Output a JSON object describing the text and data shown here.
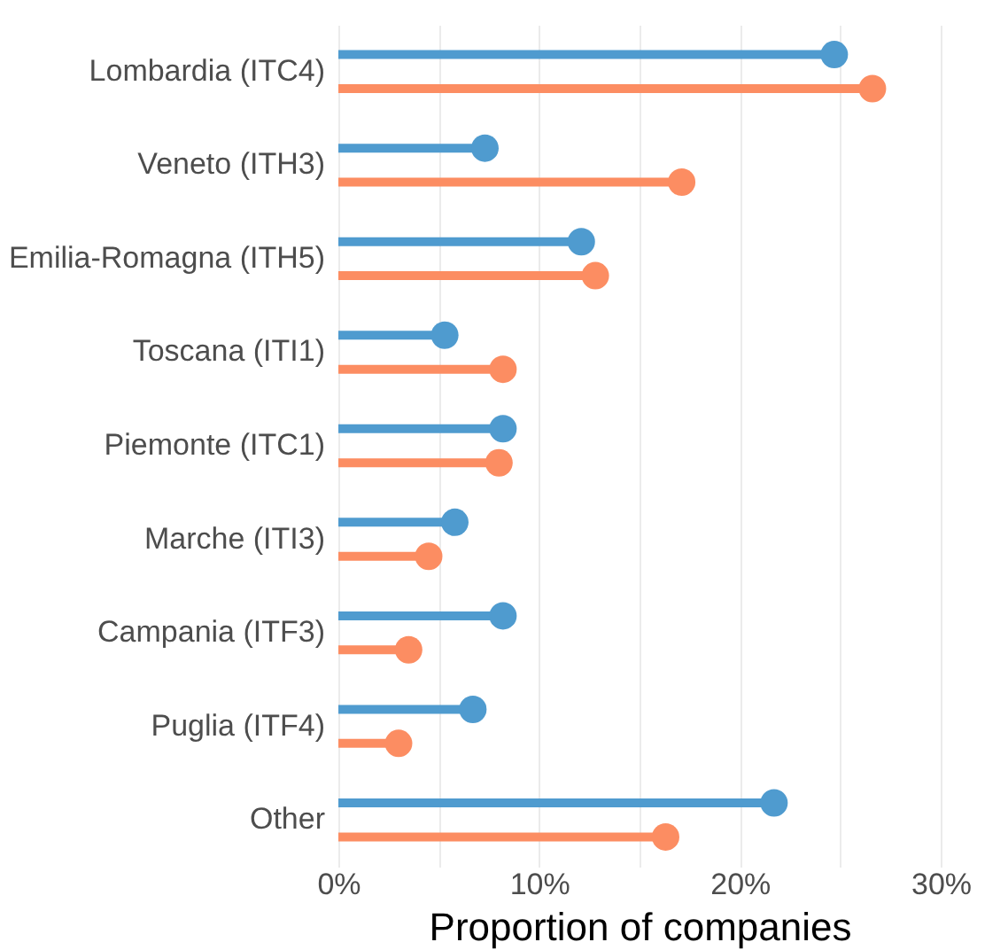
{
  "chart_data": {
    "type": "lollipop",
    "orientation": "horizontal",
    "xlabel": "Proportion of companies",
    "categories": [
      "Lombardia (ITC4)",
      "Veneto (ITH3)",
      "Emilia-Romagna (ITH5)",
      "Toscana (ITI1)",
      "Piemonte (ITC1)",
      "Marche (ITI3)",
      "Campania (ITF3)",
      "Puglia (ITF4)",
      "Other"
    ],
    "series": [
      {
        "color": "#4f9bcf",
        "values": [
          24.7,
          7.3,
          12.1,
          5.3,
          8.2,
          5.8,
          8.2,
          6.7,
          21.7
        ]
      },
      {
        "color": "#fc8d62",
        "values": [
          26.6,
          17.1,
          12.8,
          8.2,
          8.0,
          4.5,
          3.5,
          3.0,
          16.3
        ]
      }
    ],
    "xlim": [
      0,
      30
    ],
    "xticks": [
      {
        "value": 0,
        "label": "0%"
      },
      {
        "value": 5,
        "label": null
      },
      {
        "value": 10,
        "label": "10%"
      },
      {
        "value": 15,
        "label": null
      },
      {
        "value": 20,
        "label": "20%"
      },
      {
        "value": 25,
        "label": null
      },
      {
        "value": 30,
        "label": "30%"
      }
    ],
    "grid": "x",
    "marker": "circle",
    "legend": false
  }
}
